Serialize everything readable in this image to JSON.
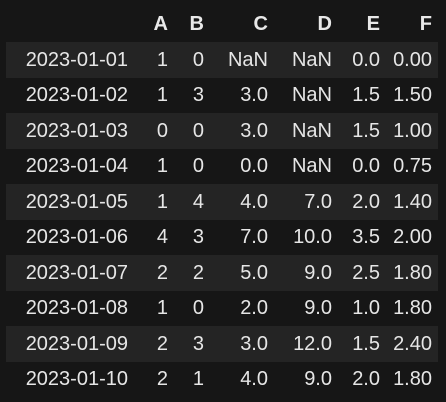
{
  "table": {
    "index_header": "",
    "columns": [
      "A",
      "B",
      "C",
      "D",
      "E",
      "F"
    ],
    "rows": [
      {
        "index": "2023-01-01",
        "values": [
          "1",
          "0",
          "NaN",
          "NaN",
          "0.0",
          "0.00"
        ]
      },
      {
        "index": "2023-01-02",
        "values": [
          "1",
          "3",
          "3.0",
          "NaN",
          "1.5",
          "1.50"
        ]
      },
      {
        "index": "2023-01-03",
        "values": [
          "0",
          "0",
          "3.0",
          "NaN",
          "1.5",
          "1.00"
        ]
      },
      {
        "index": "2023-01-04",
        "values": [
          "1",
          "0",
          "0.0",
          "NaN",
          "0.0",
          "0.75"
        ]
      },
      {
        "index": "2023-01-05",
        "values": [
          "1",
          "4",
          "4.0",
          "7.0",
          "2.0",
          "1.40"
        ]
      },
      {
        "index": "2023-01-06",
        "values": [
          "4",
          "3",
          "7.0",
          "10.0",
          "3.5",
          "2.00"
        ]
      },
      {
        "index": "2023-01-07",
        "values": [
          "2",
          "2",
          "5.0",
          "9.0",
          "2.5",
          "1.80"
        ]
      },
      {
        "index": "2023-01-08",
        "values": [
          "1",
          "0",
          "2.0",
          "9.0",
          "1.0",
          "1.80"
        ]
      },
      {
        "index": "2023-01-09",
        "values": [
          "2",
          "3",
          "3.0",
          "12.0",
          "1.5",
          "2.40"
        ]
      },
      {
        "index": "2023-01-10",
        "values": [
          "2",
          "1",
          "4.0",
          "9.0",
          "2.0",
          "1.80"
        ]
      }
    ]
  },
  "colors": {
    "background": "#161616",
    "row_stripe": "#242424",
    "text": "#e6e6e6"
  }
}
